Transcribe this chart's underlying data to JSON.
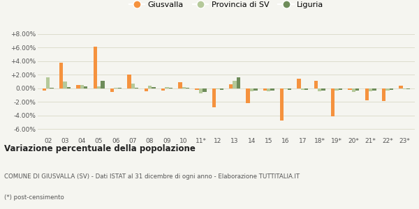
{
  "categories": [
    "02",
    "03",
    "04",
    "05",
    "06",
    "07",
    "08",
    "09",
    "10",
    "11*",
    "12",
    "13",
    "14",
    "15",
    "16",
    "17",
    "18*",
    "19*",
    "20*",
    "21*",
    "22*",
    "23*"
  ],
  "giusvalla": [
    -0.3,
    3.8,
    0.5,
    6.1,
    -0.5,
    2.0,
    -0.4,
    -0.3,
    0.9,
    -0.2,
    -2.8,
    0.6,
    -2.2,
    -0.3,
    -4.7,
    1.4,
    1.1,
    -4.1,
    -0.2,
    -1.8,
    -1.9,
    0.4
  ],
  "provincia_sv": [
    1.6,
    1.0,
    0.5,
    0.3,
    0.1,
    0.7,
    0.4,
    0.2,
    0.2,
    -0.7,
    -0.1,
    1.1,
    -0.4,
    -0.4,
    -0.1,
    -0.2,
    -0.4,
    -0.3,
    -0.5,
    -0.4,
    -0.3,
    -0.1
  ],
  "liguria": [
    0.1,
    0.2,
    0.3,
    1.1,
    0.1,
    0.1,
    0.2,
    0.1,
    0.1,
    -0.5,
    -0.2,
    1.6,
    -0.3,
    -0.3,
    -0.2,
    -0.2,
    -0.3,
    -0.2,
    -0.3,
    -0.3,
    -0.2,
    -0.1
  ],
  "color_giusvalla": "#f5923e",
  "color_provincia": "#b5c99a",
  "color_liguria": "#6e8c5a",
  "title": "Variazione percentuale della popolazione",
  "subtitle": "COMUNE DI GIUSVALLA (SV) - Dati ISTAT al 31 dicembre di ogni anno - Elaborazione TUTTITALIA.IT",
  "footnote": "(*) post-censimento",
  "legend_labels": [
    "Giusvalla",
    "Provincia di SV",
    "Liguria"
  ],
  "ylim": [
    -7.0,
    9.0
  ],
  "yticks": [
    -6.0,
    -4.0,
    -2.0,
    0.0,
    2.0,
    4.0,
    6.0,
    8.0
  ],
  "bg_color": "#f5f5f0",
  "grid_color": "#ddddcc"
}
